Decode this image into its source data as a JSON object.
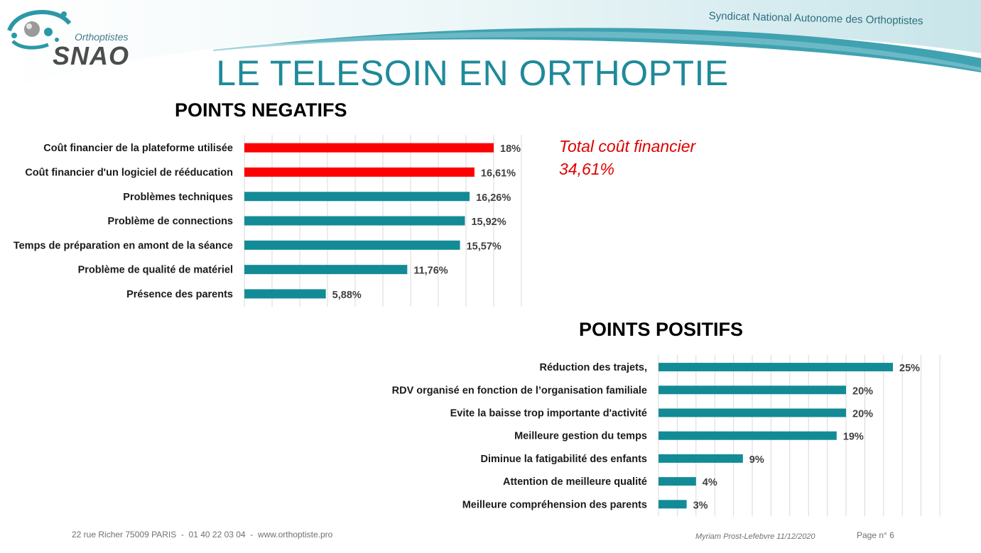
{
  "header": {
    "logo_sub": "Orthoptistes",
    "logo_main": "SNAO",
    "org_name": "Syndicat National Autonome des Orthoptistes",
    "title": "LE TELESOIN EN ORTHOPTIE"
  },
  "colors": {
    "teal": "#138b96",
    "red": "#ff0000",
    "grid": "#d9d9d9"
  },
  "chart_data": [
    {
      "type": "bar",
      "orientation": "horizontal",
      "title": "POINTS NEGATIFS",
      "xlim": [
        0,
        20
      ],
      "grid": true,
      "categories": [
        "Coût financier de la plateforme utilisée",
        "Coût financier d'un logiciel de rééducation",
        "Problèmes techniques",
        "Problème de connections",
        "Temps de préparation en amont de la séance",
        "Problème de qualité de matériel",
        "Présence des parents"
      ],
      "values": [
        18,
        16.61,
        16.26,
        15.92,
        15.57,
        11.76,
        5.88
      ],
      "labels": [
        "18%",
        "16,61%",
        "16,26%",
        "15,92%",
        "15,57%",
        "11,76%",
        "5,88%"
      ],
      "bar_colors": [
        "#ff0000",
        "#ff0000",
        "#138b96",
        "#138b96",
        "#138b96",
        "#138b96",
        "#138b96"
      ],
      "annotation": [
        "Total coût financier",
        "34,61%"
      ]
    },
    {
      "type": "bar",
      "orientation": "horizontal",
      "title": "POINTS POSITIFS",
      "xlim": [
        0,
        30
      ],
      "grid": true,
      "categories": [
        "Réduction des trajets,",
        "RDV organisé en fonction de l’organisation familiale",
        "Evite la baisse trop importante d'activité",
        "Meilleure gestion du temps",
        "Diminue la fatigabilité des enfants",
        "Attention de meilleure qualité",
        "Meilleure compréhension des parents"
      ],
      "values": [
        25,
        20,
        20,
        19,
        9,
        4,
        3
      ],
      "labels": [
        "25%",
        "20%",
        "20%",
        "19%",
        "9%",
        "4%",
        "3%"
      ],
      "bar_colors": [
        "#138b96",
        "#138b96",
        "#138b96",
        "#138b96",
        "#138b96",
        "#138b96",
        "#138b96"
      ]
    }
  ],
  "footer": {
    "address": "22 rue Richer 75009 PARIS  -  01 40 22 03 04  -  www.orthoptiste.pro",
    "author": "Myriam Prost-Lefebvre 11/12/2020",
    "page": "Page n° 6"
  }
}
